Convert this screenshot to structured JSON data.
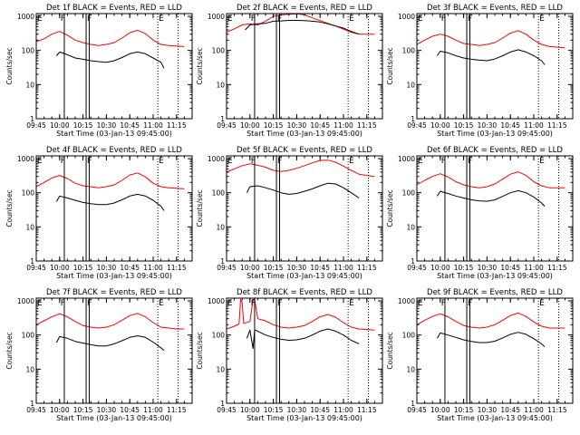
{
  "colors": {
    "background": "#ffffff",
    "axes": "#000000",
    "events_series": "#000000",
    "lld_series": "#ff0000",
    "marker_lines": "#000000"
  },
  "shared": {
    "type": "line",
    "xlabel": "Start Time (03-Jan-13 09:45:00)",
    "ylabel": "Counts/sec",
    "y_scale": "log",
    "ylim": [
      1,
      1200
    ],
    "y_tick_values": [
      1,
      10,
      100,
      1000
    ],
    "y_tick_labels": [
      "1",
      "10",
      "100",
      "1000"
    ],
    "xlim": [
      "09:45",
      "11:25"
    ],
    "x_tick_values": [
      "09:45",
      "10:00",
      "10:15",
      "10:30",
      "10:45",
      "11:00",
      "11:15"
    ],
    "x_tick_labels": [
      "09:45",
      "10:00",
      "10:15",
      "10:30",
      "10:45",
      "11:00",
      "11:15"
    ],
    "x_start": "09:45",
    "marker_flags": {
      "F": "10:00",
      "F2": "10:17",
      "E": "11:03"
    },
    "grid": false,
    "legend": "none"
  },
  "chart_data": [
    {
      "title": "Det 1f BLACK = Events, RED = LLD",
      "type": "line",
      "solid_markers": [
        "10:03",
        "10:17",
        "10:19"
      ],
      "dotted_markers": [
        "11:03",
        "11:16"
      ],
      "series": [
        {
          "color": "#ff0000",
          "x": [
            "09:45",
            "09:50",
            "09:55",
            "10:00",
            "10:05",
            "10:10",
            "10:15",
            "10:20",
            "10:25",
            "10:30",
            "10:35",
            "10:40",
            "10:45",
            "10:50",
            "10:55",
            "11:00",
            "11:05",
            "11:10",
            "11:15",
            "11:20"
          ],
          "values": [
            180,
            220,
            300,
            360,
            280,
            200,
            170,
            150,
            140,
            150,
            170,
            230,
            330,
            390,
            310,
            200,
            150,
            140,
            135,
            130
          ]
        },
        {
          "color": "#000000",
          "x": [
            "09:58",
            "10:00",
            "10:05",
            "10:10",
            "10:15",
            "10:20",
            "10:25",
            "10:30",
            "10:35",
            "10:40",
            "10:45",
            "10:50",
            "10:55",
            "11:00",
            "11:05",
            "11:07"
          ],
          "values": [
            70,
            90,
            75,
            60,
            55,
            50,
            47,
            45,
            50,
            62,
            80,
            90,
            80,
            60,
            45,
            30
          ]
        }
      ]
    },
    {
      "title": "Det 2f BLACK = Events, RED = LLD",
      "type": "line",
      "solid_markers": [
        "10:03",
        "10:17",
        "10:19"
      ],
      "dotted_markers": [
        "11:03",
        "11:16"
      ],
      "series": [
        {
          "color": "#ff0000",
          "x": [
            "09:45",
            "09:50",
            "09:55",
            "10:00",
            "10:05",
            "10:10",
            "10:15",
            "10:20",
            "10:25",
            "10:30",
            "10:35",
            "10:40",
            "10:45",
            "10:50",
            "10:55",
            "11:00",
            "11:05",
            "11:10",
            "11:15",
            "11:20"
          ],
          "values": [
            340,
            430,
            560,
            600,
            560,
            720,
            1000,
            1100,
            1150,
            1180,
            1100,
            900,
            750,
            620,
            520,
            420,
            340,
            300,
            300,
            300
          ]
        },
        {
          "color": "#000000",
          "x": [
            "09:57",
            "10:00",
            "10:05",
            "10:10",
            "10:15",
            "10:20",
            "10:25",
            "10:30",
            "10:35",
            "10:40",
            "10:45",
            "10:50",
            "10:55",
            "11:00",
            "11:05",
            "11:10"
          ],
          "values": [
            400,
            560,
            600,
            620,
            720,
            730,
            760,
            760,
            750,
            720,
            680,
            600,
            520,
            450,
            360,
            300
          ]
        }
      ]
    },
    {
      "title": "Det 3f BLACK = Events, RED = LLD",
      "type": "line",
      "solid_markers": [
        "10:03",
        "10:17",
        "10:19"
      ],
      "dotted_markers": [
        "11:03",
        "11:16"
      ],
      "series": [
        {
          "color": "#ff0000",
          "x": [
            "09:45",
            "09:50",
            "09:55",
            "10:00",
            "10:05",
            "10:10",
            "10:15",
            "10:20",
            "10:25",
            "10:30",
            "10:35",
            "10:40",
            "10:45",
            "10:50",
            "10:55",
            "11:00",
            "11:05",
            "11:10",
            "11:15",
            "11:20"
          ],
          "values": [
            150,
            200,
            260,
            300,
            260,
            200,
            160,
            150,
            140,
            150,
            170,
            230,
            320,
            380,
            300,
            200,
            150,
            130,
            125,
            120
          ]
        },
        {
          "color": "#000000",
          "x": [
            "09:58",
            "10:00",
            "10:05",
            "10:10",
            "10:15",
            "10:20",
            "10:25",
            "10:30",
            "10:35",
            "10:40",
            "10:45",
            "10:50",
            "10:55",
            "11:00",
            "11:05",
            "11:07"
          ],
          "values": [
            70,
            95,
            85,
            70,
            60,
            55,
            52,
            50,
            56,
            70,
            90,
            105,
            90,
            70,
            50,
            38
          ]
        }
      ]
    },
    {
      "title": "Det 4f BLACK = Events, RED = LLD",
      "type": "line",
      "solid_markers": [
        "10:03",
        "10:17",
        "10:19"
      ],
      "dotted_markers": [
        "11:03",
        "11:16"
      ],
      "series": [
        {
          "color": "#ff0000",
          "x": [
            "09:45",
            "09:50",
            "09:55",
            "10:00",
            "10:05",
            "10:10",
            "10:15",
            "10:20",
            "10:25",
            "10:30",
            "10:35",
            "10:40",
            "10:45",
            "10:50",
            "10:55",
            "11:00",
            "11:05",
            "11:10",
            "11:15",
            "11:20"
          ],
          "values": [
            150,
            200,
            270,
            320,
            260,
            190,
            160,
            150,
            140,
            150,
            170,
            230,
            330,
            380,
            290,
            190,
            150,
            140,
            135,
            130
          ]
        },
        {
          "color": "#000000",
          "x": [
            "09:58",
            "10:00",
            "10:05",
            "10:10",
            "10:15",
            "10:20",
            "10:25",
            "10:30",
            "10:35",
            "10:40",
            "10:45",
            "10:50",
            "10:55",
            "11:00",
            "11:05",
            "11:07"
          ],
          "values": [
            55,
            80,
            70,
            60,
            52,
            48,
            45,
            45,
            50,
            62,
            80,
            90,
            80,
            60,
            40,
            30
          ]
        }
      ]
    },
    {
      "title": "Det 5f BLACK = Events, RED = LLD",
      "type": "line",
      "solid_markers": [
        "10:03",
        "10:17",
        "10:19"
      ],
      "dotted_markers": [
        "11:03",
        "11:16"
      ],
      "series": [
        {
          "color": "#ff0000",
          "x": [
            "09:45",
            "09:50",
            "09:55",
            "10:00",
            "10:05",
            "10:10",
            "10:15",
            "10:20",
            "10:25",
            "10:30",
            "10:35",
            "10:40",
            "10:45",
            "10:50",
            "10:55",
            "11:00",
            "11:05",
            "11:10",
            "11:15",
            "11:20"
          ],
          "values": [
            400,
            500,
            620,
            700,
            640,
            560,
            450,
            420,
            450,
            520,
            620,
            750,
            880,
            900,
            780,
            600,
            450,
            350,
            320,
            300
          ]
        },
        {
          "color": "#000000",
          "x": [
            "09:58",
            "10:00",
            "10:05",
            "10:10",
            "10:15",
            "10:20",
            "10:25",
            "10:30",
            "10:35",
            "10:40",
            "10:45",
            "10:50",
            "10:55",
            "11:00",
            "11:05",
            "11:10"
          ],
          "values": [
            100,
            150,
            160,
            140,
            120,
            100,
            90,
            95,
            110,
            130,
            160,
            190,
            180,
            140,
            100,
            70
          ]
        }
      ]
    },
    {
      "title": "Det 6f BLACK = Events, RED = LLD",
      "type": "line",
      "solid_markers": [
        "10:03",
        "10:17",
        "10:19"
      ],
      "dotted_markers": [
        "11:03",
        "11:16"
      ],
      "series": [
        {
          "color": "#ff0000",
          "x": [
            "09:45",
            "09:50",
            "09:55",
            "10:00",
            "10:05",
            "10:10",
            "10:15",
            "10:20",
            "10:25",
            "10:30",
            "10:35",
            "10:40",
            "10:45",
            "10:50",
            "10:55",
            "11:00",
            "11:05",
            "11:10",
            "11:15",
            "11:20"
          ],
          "values": [
            170,
            230,
            300,
            360,
            290,
            210,
            170,
            150,
            140,
            150,
            180,
            250,
            350,
            410,
            320,
            210,
            160,
            140,
            140,
            140
          ]
        },
        {
          "color": "#000000",
          "x": [
            "09:58",
            "10:00",
            "10:05",
            "10:10",
            "10:15",
            "10:20",
            "10:25",
            "10:30",
            "10:35",
            "10:40",
            "10:45",
            "10:50",
            "10:55",
            "11:00",
            "11:05",
            "11:07"
          ],
          "values": [
            80,
            110,
            95,
            80,
            70,
            62,
            58,
            56,
            62,
            78,
            100,
            115,
            100,
            75,
            50,
            40
          ]
        }
      ]
    },
    {
      "title": "Det 7f BLACK = Events, RED = LLD",
      "type": "line",
      "solid_markers": [
        "10:03",
        "10:17",
        "10:19"
      ],
      "dotted_markers": [
        "11:03",
        "11:16"
      ],
      "series": [
        {
          "color": "#ff0000",
          "x": [
            "09:45",
            "09:50",
            "09:55",
            "10:00",
            "10:05",
            "10:10",
            "10:15",
            "10:20",
            "10:25",
            "10:30",
            "10:35",
            "10:40",
            "10:45",
            "10:50",
            "10:55",
            "11:00",
            "11:05",
            "11:10",
            "11:15",
            "11:20"
          ],
          "values": [
            200,
            260,
            340,
            420,
            340,
            250,
            190,
            170,
            160,
            170,
            200,
            270,
            370,
            430,
            340,
            230,
            170,
            160,
            150,
            150
          ]
        },
        {
          "color": "#000000",
          "x": [
            "09:58",
            "10:00",
            "10:05",
            "10:10",
            "10:15",
            "10:20",
            "10:25",
            "10:30",
            "10:35",
            "10:40",
            "10:45",
            "10:50",
            "10:55",
            "11:00",
            "11:05",
            "11:07"
          ],
          "values": [
            60,
            90,
            80,
            65,
            58,
            52,
            48,
            48,
            55,
            68,
            85,
            95,
            85,
            62,
            42,
            35
          ]
        }
      ]
    },
    {
      "title": "Det 8f BLACK = Events, RED = LLD",
      "type": "line",
      "solid_markers": [
        "10:03",
        "10:17",
        "10:19"
      ],
      "dotted_markers": [
        "11:03",
        "11:16"
      ],
      "series": [
        {
          "color": "#ff0000",
          "x": [
            "09:45",
            "09:50",
            "09:53",
            "09:54",
            "09:55",
            "09:56",
            "10:00",
            "10:02",
            "10:03",
            "10:05",
            "10:10",
            "10:15",
            "10:20",
            "10:25",
            "10:30",
            "10:35",
            "10:40",
            "10:45",
            "10:50",
            "10:55",
            "11:00",
            "11:05",
            "11:10",
            "11:15",
            "11:20"
          ],
          "values": [
            150,
            180,
            210,
            1100,
            900,
            220,
            250,
            1100,
            1100,
            300,
            260,
            200,
            170,
            160,
            170,
            190,
            250,
            340,
            400,
            330,
            230,
            170,
            150,
            145,
            140
          ]
        },
        {
          "color": "#000000",
          "x": [
            "09:58",
            "10:00",
            "10:02",
            "10:03",
            "10:05",
            "10:10",
            "10:15",
            "10:20",
            "10:25",
            "10:30",
            "10:35",
            "10:40",
            "10:45",
            "10:50",
            "10:55",
            "11:00",
            "11:05",
            "11:10"
          ],
          "values": [
            80,
            140,
            40,
            140,
            130,
            100,
            85,
            75,
            70,
            72,
            80,
            100,
            130,
            150,
            130,
            100,
            70,
            55
          ]
        }
      ]
    },
    {
      "title": "Det 9f BLACK = Events, RED = LLD",
      "type": "line",
      "solid_markers": [
        "10:03",
        "10:17",
        "10:19"
      ],
      "dotted_markers": [
        "11:03",
        "11:16"
      ],
      "series": [
        {
          "color": "#ff0000",
          "x": [
            "09:45",
            "09:50",
            "09:55",
            "10:00",
            "10:05",
            "10:10",
            "10:15",
            "10:20",
            "10:25",
            "10:30",
            "10:35",
            "10:40",
            "10:45",
            "10:50",
            "10:55",
            "11:00",
            "11:05",
            "11:10",
            "11:15",
            "11:20"
          ],
          "values": [
            200,
            270,
            350,
            420,
            340,
            250,
            190,
            170,
            160,
            170,
            200,
            270,
            370,
            440,
            350,
            240,
            180,
            160,
            160,
            160
          ]
        },
        {
          "color": "#000000",
          "x": [
            "09:58",
            "10:00",
            "10:05",
            "10:10",
            "10:15",
            "10:20",
            "10:25",
            "10:30",
            "10:35",
            "10:40",
            "10:45",
            "10:50",
            "10:55",
            "11:00",
            "11:05",
            "11:07"
          ],
          "values": [
            80,
            115,
            100,
            85,
            72,
            65,
            60,
            60,
            66,
            82,
            105,
            120,
            105,
            78,
            55,
            45
          ]
        }
      ]
    }
  ]
}
